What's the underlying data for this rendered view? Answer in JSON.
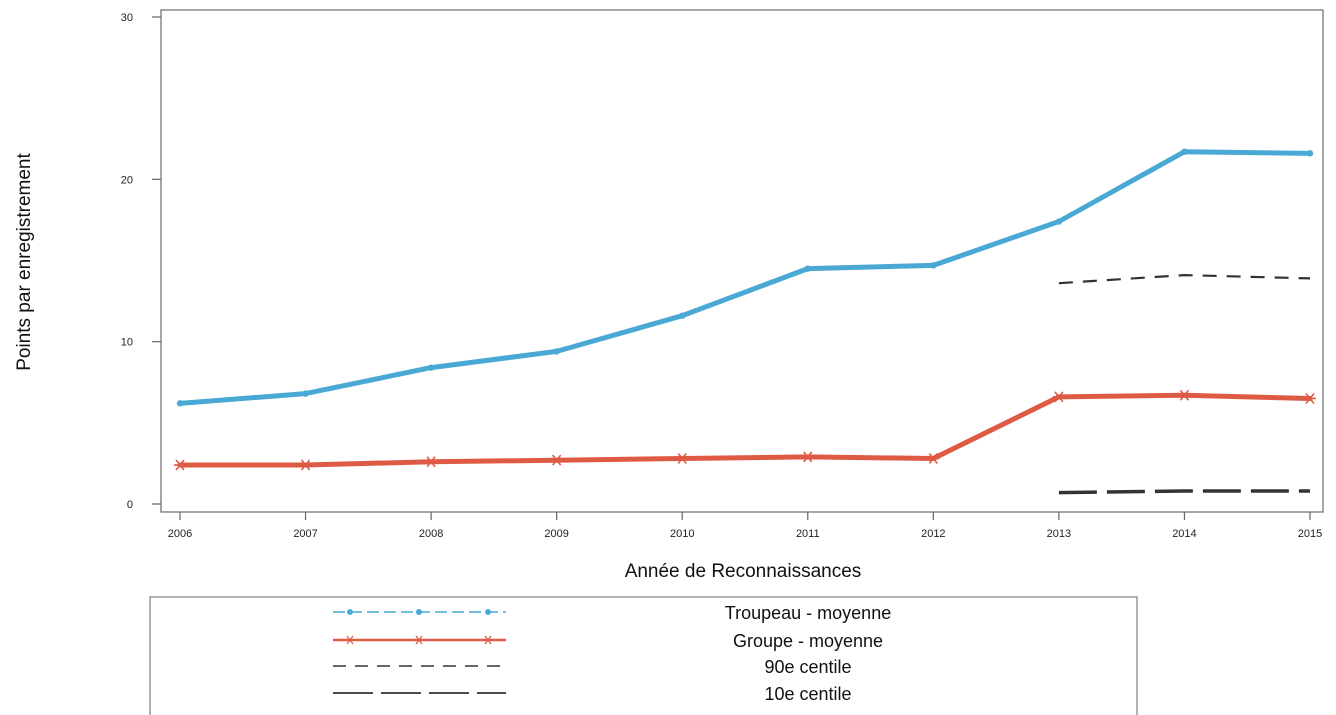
{
  "chart_data": {
    "type": "line",
    "xlabel": "Année de Reconnaissances",
    "ylabel": "Points par enregistrement",
    "x": [
      2006,
      2007,
      2008,
      2009,
      2010,
      2011,
      2012,
      2013,
      2014,
      2015
    ],
    "xlim": [
      2006,
      2015
    ],
    "ylim": [
      0,
      30
    ],
    "y_ticks": [
      0,
      10,
      20,
      30
    ],
    "grid": false,
    "legend_position": "bottom",
    "series": [
      {
        "name": "Troupeau - moyenne",
        "color": "#49a9d4",
        "style": "solid-thick",
        "x": [
          2006,
          2007,
          2008,
          2009,
          2010,
          2011,
          2012,
          2013,
          2014,
          2015
        ],
        "values": [
          6.2,
          6.8,
          8.4,
          9.4,
          11.6,
          14.5,
          14.7,
          17.4,
          21.7,
          21.6
        ]
      },
      {
        "name": "Groupe - moyenne",
        "color": "#df5a45",
        "style": "solid-thick",
        "x": [
          2006,
          2007,
          2008,
          2009,
          2010,
          2011,
          2012,
          2013,
          2014,
          2015
        ],
        "values": [
          2.4,
          2.4,
          2.6,
          2.7,
          2.8,
          2.9,
          2.8,
          6.6,
          6.7,
          6.5
        ]
      },
      {
        "name": "90e centile",
        "color": "#333333",
        "style": "dashed",
        "x": [
          2013,
          2014,
          2015
        ],
        "values": [
          13.6,
          14.1,
          13.9
        ]
      },
      {
        "name": "10e centile",
        "color": "#333333",
        "style": "long-dashed",
        "x": [
          2013,
          2014,
          2015
        ],
        "values": [
          0.7,
          0.8,
          0.8
        ]
      }
    ]
  }
}
